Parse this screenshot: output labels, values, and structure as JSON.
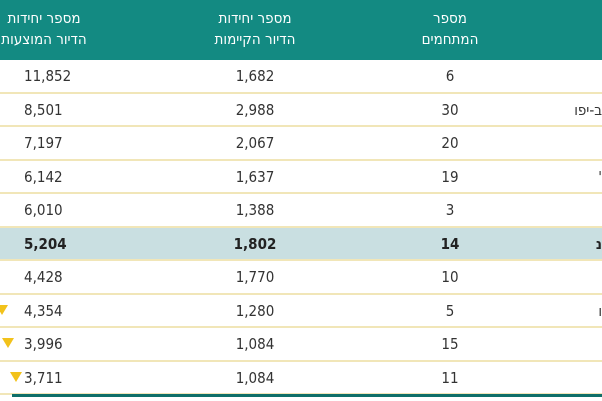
{
  "headers": {
    "proposed": [
      "מספר יחידות",
      "הדיור המוצעות"
    ],
    "existing": [
      "מספר יחידות",
      "הדיור הקיימות"
    ],
    "compounds": [
      "מספר",
      "המתחמים"
    ]
  },
  "rows": [
    {
      "name": "",
      "compounds": "6",
      "existing": "1,682",
      "proposed": "11,852",
      "marker": false
    },
    {
      "name": "ב-יפו",
      "compounds": "30",
      "existing": "2,988",
      "proposed": "8,501",
      "marker": false
    },
    {
      "name": "",
      "compounds": "20",
      "existing": "2,067",
      "proposed": "7,197",
      "marker": false
    },
    {
      "name": "'",
      "compounds": "19",
      "existing": "1,637",
      "proposed": "6,142",
      "marker": false
    },
    {
      "name": "",
      "compounds": "3",
      "existing": "1,388",
      "proposed": "6,010",
      "marker": false
    },
    {
      "name": "נ",
      "compounds": "14",
      "existing": "1,802",
      "proposed": "5,204",
      "marker": false,
      "highlight": true
    },
    {
      "name": "",
      "compounds": "10",
      "existing": "1,770",
      "proposed": "4,428",
      "marker": false
    },
    {
      "name": "ו",
      "compounds": "5",
      "existing": "1,280",
      "proposed": "4,354",
      "marker": true
    },
    {
      "name": "",
      "compounds": "15",
      "existing": "1,084",
      "proposed": "3,996",
      "marker": true
    },
    {
      "name": "",
      "compounds": "11",
      "existing": "1,084",
      "proposed": "3,711",
      "marker": true
    }
  ],
  "colors": {
    "header": "#138a82",
    "highlight": "#c9dfe1",
    "marker": "#f2c21b",
    "divider": "#f1e6b8"
  }
}
